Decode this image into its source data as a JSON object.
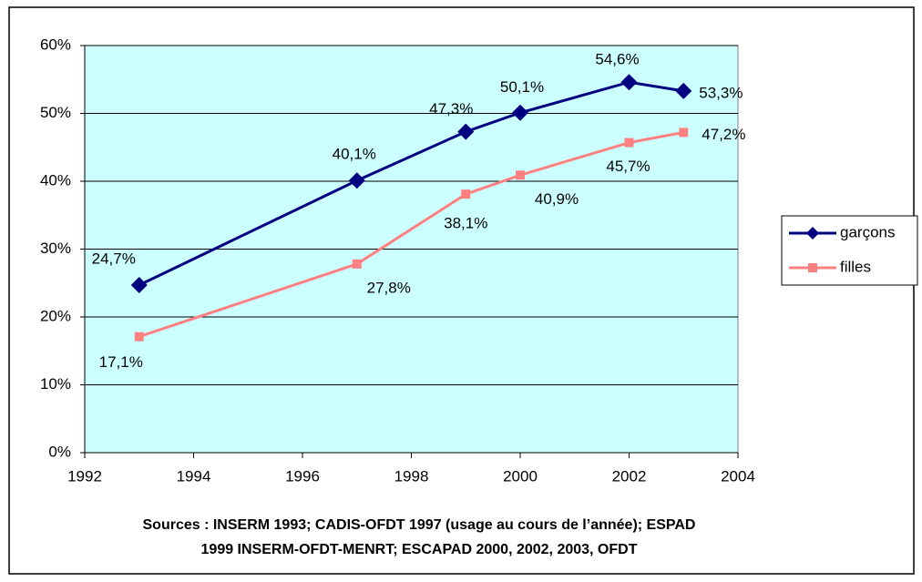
{
  "chart_data": {
    "type": "line",
    "x": [
      1993,
      1997,
      1999,
      2000,
      2002,
      2003
    ],
    "series": [
      {
        "name": "garçons",
        "color": "#000080",
        "marker": "diamond",
        "values": [
          24.7,
          40.1,
          47.3,
          50.1,
          54.6,
          53.3
        ],
        "value_labels": [
          "24,7%",
          "40,1%",
          "47,3%",
          "50,1%",
          "54,6%",
          "53,3%"
        ]
      },
      {
        "name": "filles",
        "color": "#FF8080",
        "marker": "square",
        "values": [
          17.1,
          27.8,
          38.1,
          40.9,
          45.7,
          47.2
        ],
        "value_labels": [
          "17,1%",
          "27,8%",
          "38,1%",
          "40,9%",
          "45,7%",
          "47,2%"
        ]
      }
    ],
    "xlim": [
      1992,
      2004
    ],
    "xticks": [
      1992,
      1994,
      1996,
      1998,
      2000,
      2002,
      2004
    ],
    "ylim": [
      0,
      60
    ],
    "yticks": [
      {
        "value": 0,
        "label": "0%"
      },
      {
        "value": 10,
        "label": "10%"
      },
      {
        "value": 20,
        "label": "20%"
      },
      {
        "value": 30,
        "label": "30%"
      },
      {
        "value": 40,
        "label": "40%"
      },
      {
        "value": 50,
        "label": "50%"
      },
      {
        "value": 60,
        "label": "60%"
      }
    ],
    "grid": true,
    "legend": "right",
    "plot_background": "#CCFFFF",
    "source": [
      "Sources : INSERM 1993; CADIS-OFDT 1997 (usage au cours de l’année); ESPAD",
      "1999 INSERM-OFDT-MENRT; ESCAPAD 2000, 2002, 2003, OFDT"
    ]
  }
}
